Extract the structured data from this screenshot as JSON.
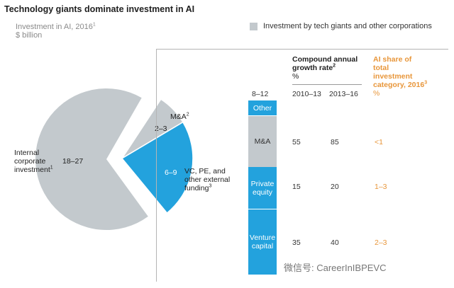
{
  "title": "Technology giants dominate investment in AI",
  "subtitle": "Investment in AI, 2016",
  "subtitle_sup": "1",
  "unit": "$ billion",
  "legend": "Investment by tech giants and other corporations",
  "colors": {
    "grey": "#c3c9cd",
    "blue": "#23a2dd",
    "orange": "#e8963a"
  },
  "pie_labels": {
    "internal": [
      "Internal",
      "corporate",
      "investment"
    ],
    "internal_sup": "1",
    "internal_value": "18–27",
    "ma_name": "M&A",
    "ma_sup": "2",
    "ma_value": "2–3",
    "vc_value": "6–9",
    "vc_name": [
      "VC, PE, and",
      "other external",
      "funding"
    ],
    "vc_sup": "3"
  },
  "table": {
    "cagr_head": [
      "Compound annual",
      "growth rate"
    ],
    "cagr_sup": "2",
    "cagr_unit": "%",
    "ai_head": [
      "AI share of",
      "total",
      "investment",
      "category, 2016"
    ],
    "ai_sup": "3",
    "ai_unit": "%",
    "bar_total": "8–12",
    "col1": "2010–13",
    "col2": "2013–16"
  },
  "bar_segments": [
    "Other",
    "M&A",
    "Private equity",
    "Venture capital"
  ],
  "rows": [
    {
      "c1": "55",
      "c2": "85",
      "ai": "<1"
    },
    {
      "c1": "15",
      "c2": "20",
      "ai": "1–3"
    },
    {
      "c1": "35",
      "c2": "40",
      "ai": "2–3"
    }
  ],
  "watermark": "微信号: CareerInIBPEVC",
  "chart_data": {
    "type": "pie",
    "title": "Technology giants dominate investment in AI",
    "subtitle": "Investment in AI, 2016",
    "unit": "$ billion",
    "slices": [
      {
        "label": "Internal corporate investment",
        "range": [
          18,
          27
        ],
        "color": "#c3c9cd"
      },
      {
        "label": "M&A",
        "range": [
          2,
          3
        ],
        "color": "#c3c9cd"
      },
      {
        "label": "VC, PE, and other external funding",
        "range": [
          6,
          9
        ],
        "color": "#23a2dd"
      }
    ],
    "breakdown": {
      "type": "table",
      "total": "8–12",
      "rows": [
        {
          "category": "Other"
        },
        {
          "category": "M&A",
          "cagr_2010_13": 55,
          "cagr_2013_16": 85,
          "ai_share": "<1"
        },
        {
          "category": "Private equity",
          "cagr_2010_13": 15,
          "cagr_2013_16": 20,
          "ai_share": "1–3"
        },
        {
          "category": "Venture capital",
          "cagr_2010_13": 35,
          "cagr_2013_16": 40,
          "ai_share": "2–3"
        }
      ]
    }
  }
}
